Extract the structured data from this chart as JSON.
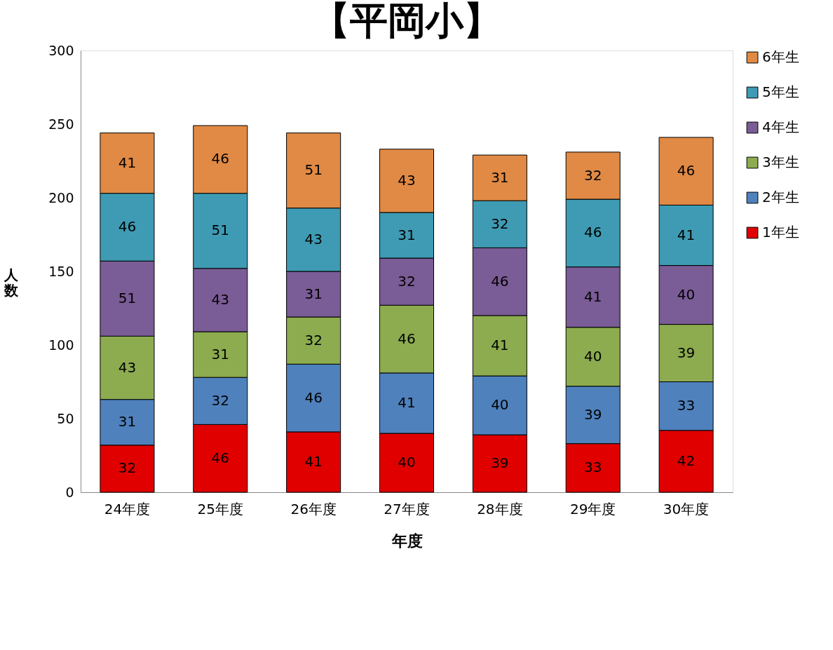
{
  "chart_data": {
    "type": "bar",
    "title": "【平岡小】",
    "xlabel": "年度",
    "ylabel": "人数",
    "stacked": true,
    "data_labels": true,
    "legend": "right",
    "grid": false,
    "categories": [
      "24年度",
      "25年度",
      "26年度",
      "27年度",
      "28年度",
      "29年度",
      "30年度"
    ],
    "ylim": [
      0,
      300
    ],
    "yticks": [
      0,
      50,
      100,
      150,
      200,
      250,
      300
    ],
    "series": [
      {
        "name": "1年生",
        "color": "#e00000",
        "values": [
          32,
          46,
          41,
          40,
          39,
          33,
          42
        ]
      },
      {
        "name": "2年生",
        "color": "#4f81bd",
        "values": [
          31,
          32,
          46,
          41,
          40,
          39,
          33
        ]
      },
      {
        "name": "3年生",
        "color": "#8cac4f",
        "values": [
          43,
          31,
          32,
          46,
          41,
          40,
          39
        ]
      },
      {
        "name": "4年生",
        "color": "#7a5c96",
        "values": [
          51,
          43,
          31,
          32,
          46,
          41,
          40
        ]
      },
      {
        "name": "5年生",
        "color": "#3e9bb3",
        "values": [
          46,
          51,
          43,
          31,
          32,
          46,
          41
        ]
      },
      {
        "name": "6年生",
        "color": "#e08a45",
        "values": [
          41,
          46,
          51,
          43,
          31,
          32,
          46
        ]
      }
    ]
  }
}
